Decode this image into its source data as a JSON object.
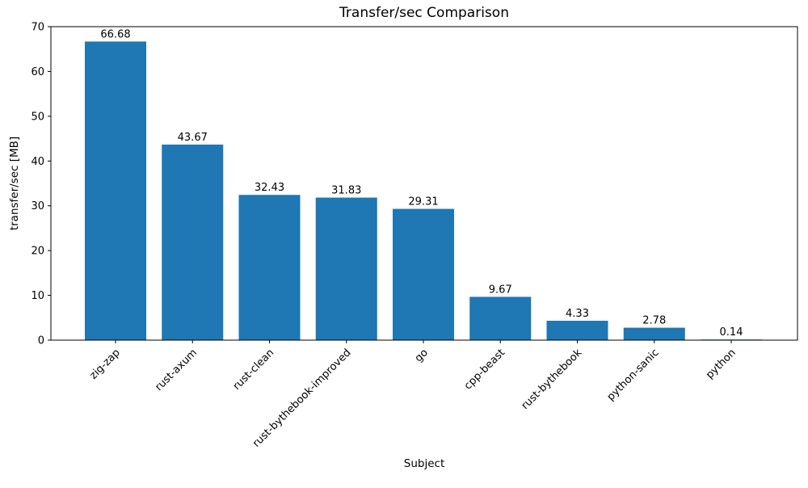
{
  "chart_data": {
    "type": "bar",
    "title": "Transfer/sec Comparison",
    "xlabel": "Subject",
    "ylabel": "transfer/sec [MB]",
    "categories": [
      "zig-zap",
      "rust-axum",
      "rust-clean",
      "rust-bythebook-improved",
      "go",
      "cpp-beast",
      "rust-bythebook",
      "python-sanic",
      "python"
    ],
    "values": [
      66.68,
      43.67,
      32.43,
      31.83,
      29.31,
      9.67,
      4.33,
      2.78,
      0.14
    ],
    "bar_labels": [
      "66.68",
      "43.67",
      "32.43",
      "31.83",
      "29.31",
      "9.67",
      "4.33",
      "2.78",
      "0.14"
    ],
    "ylim": [
      0,
      70
    ],
    "yticks": [
      0,
      10,
      20,
      30,
      40,
      50,
      60,
      70
    ],
    "bar_color": "#1f77b4",
    "axis_color": "#000000",
    "text_color": "#000000",
    "background": "#ffffff",
    "xtick_rotation": 45,
    "grid": false,
    "legend_position": "none"
  }
}
